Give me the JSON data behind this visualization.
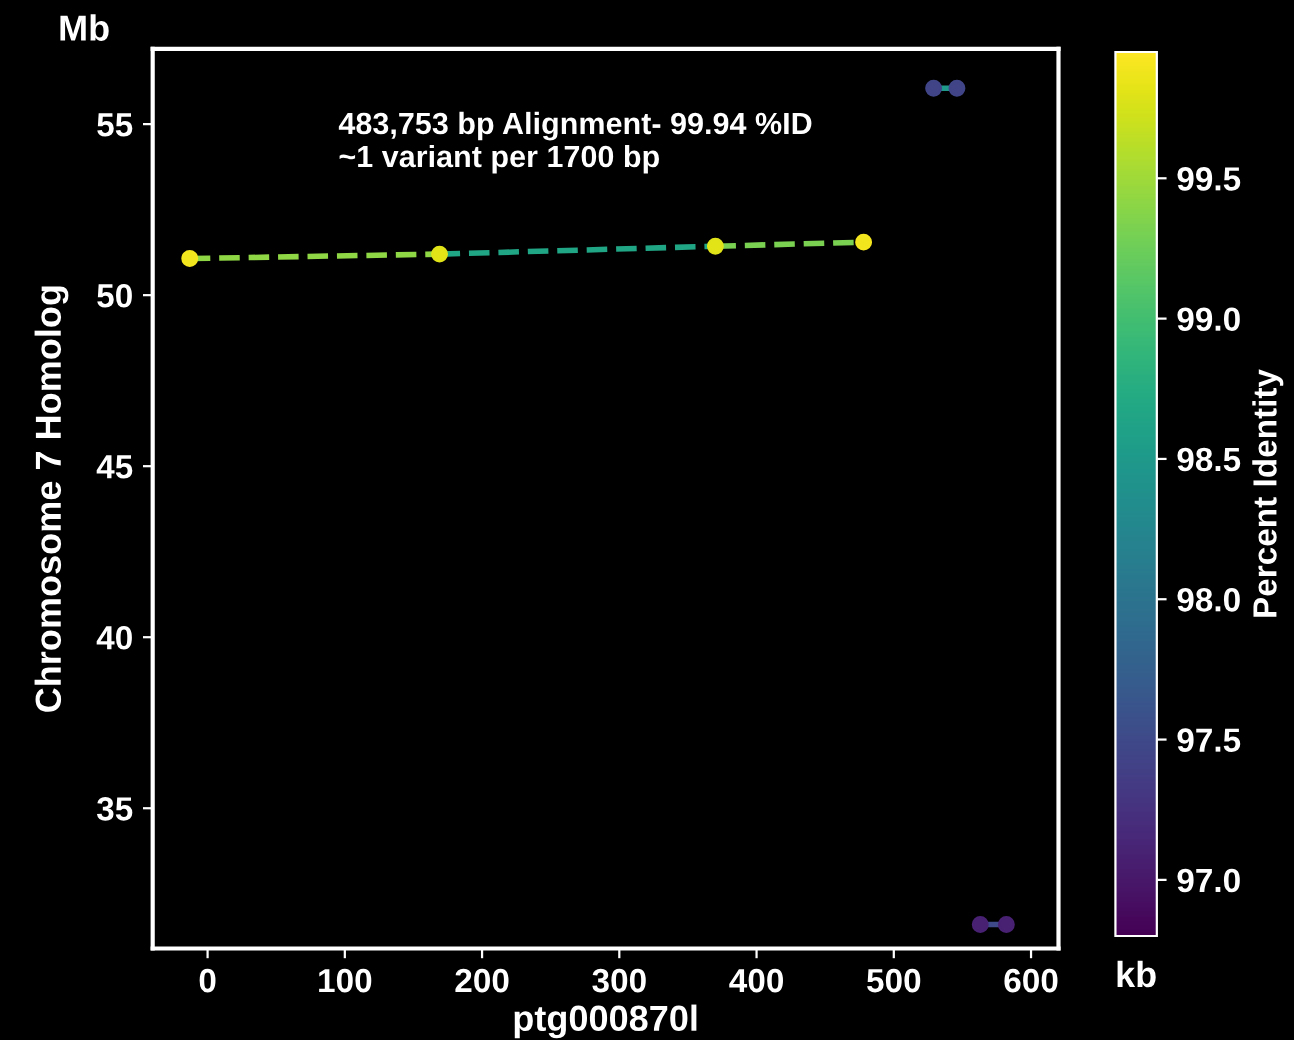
{
  "chart_data": {
    "type": "line",
    "xlabel": "ptg000870l",
    "ylabel": "Chromosome 7 Homolog",
    "clabel": "Percent Identity",
    "annotations": [
      "483,753 bp Alignment- 99.94 %ID\n~1 variant per 1700 bp",
      "Mb",
      "kb"
    ],
    "series": [
      {
        "x": [
          -13,
          169
        ],
        "values": [
          51.07,
          51.2
        ],
        "color": "#8fd744",
        "marker": "none"
      },
      {
        "x": [
          169,
          370
        ],
        "values": [
          51.2,
          51.43
        ],
        "color": "#21a685",
        "marker": "none"
      },
      {
        "x": [
          370,
          478
        ],
        "values": [
          51.43,
          51.55
        ],
        "color": "#7ad151",
        "marker": "none"
      },
      {
        "x": [
          529,
          546
        ],
        "values": [
          56.05,
          56.05
        ],
        "color": "#1f9a8a",
        "marker": "none"
      },
      {
        "x": [
          563,
          582
        ],
        "values": [
          31.6,
          31.6
        ],
        "color": "#3e4a89",
        "marker": "none"
      },
      {
        "type": "scatter",
        "marker": "circle",
        "x": [
          -13,
          169,
          370,
          478,
          529,
          546,
          563,
          582
        ],
        "values": [
          51.07,
          51.2,
          51.43,
          51.55,
          56.05,
          56.05,
          31.6,
          31.6
        ],
        "cvalues": [
          99.9,
          99.8,
          99.8,
          99.9,
          97.45,
          97.45,
          97.09,
          97.09
        ],
        "colors": [
          "#f1e51d",
          "#e2e418",
          "#e2e418",
          "#f1e51d",
          "#414487",
          "#414487",
          "#482173",
          "#482173"
        ]
      }
    ],
    "xlim": [
      -40,
      620
    ],
    "ylim": [
      30.9,
      57.2
    ],
    "xticks": [
      0,
      100,
      200,
      300,
      400,
      500,
      600
    ],
    "yticks": [
      35,
      40,
      45,
      50,
      55
    ],
    "clim": [
      96.8,
      99.95
    ],
    "cticks": [
      {
        "value": 97,
        "label": "97.0"
      },
      97.5,
      {
        "value": 98,
        "label": "98.0"
      },
      98.5,
      {
        "value": 99,
        "label": "99.0"
      },
      99.5
    ],
    "grid": false,
    "legend": false,
    "line_style": "dashed"
  }
}
